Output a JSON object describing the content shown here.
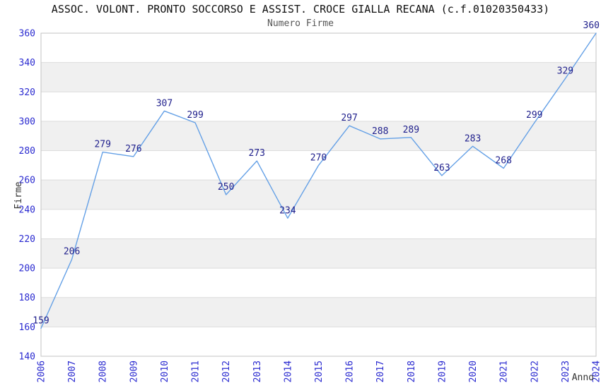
{
  "chart_data": {
    "type": "line",
    "title": "ASSOC. VOLONT. PRONTO SOCCORSO E ASSIST. CROCE GIALLA RECANA (c.f.01020350433)",
    "subtitle": "Numero Firme",
    "xlabel": "Anno",
    "ylabel": "Firme",
    "categories": [
      "2006",
      "2007",
      "2008",
      "2009",
      "2010",
      "2011",
      "2012",
      "2013",
      "2014",
      "2015",
      "2016",
      "2017",
      "2018",
      "2019",
      "2020",
      "2021",
      "2022",
      "2023",
      "2024"
    ],
    "series": [
      {
        "name": "Numero Firme",
        "values": [
          159,
          206,
          279,
          276,
          307,
          299,
          250,
          273,
          234,
          270,
          297,
          288,
          289,
          263,
          283,
          268,
          299,
          329,
          360
        ]
      }
    ],
    "ylim": [
      140,
      360
    ],
    "ytick_step": 20,
    "yticks": [
      140,
      160,
      180,
      200,
      220,
      240,
      260,
      280,
      300,
      320,
      340,
      360
    ],
    "grid": true,
    "alternating_bands": true,
    "data_labels_shown": true,
    "legend_position": "none",
    "colors": {
      "line": "#64a0e6",
      "tick_labels": "#2a2ad0",
      "data_labels": "#1f1f8c",
      "band": "#f0f0f0",
      "gridline": "#dcdcdc",
      "plot_border": "#c3c3c3",
      "title": "#111111",
      "subtitle": "#555555",
      "axis_titles": "#333333",
      "background": "#ffffff"
    }
  }
}
